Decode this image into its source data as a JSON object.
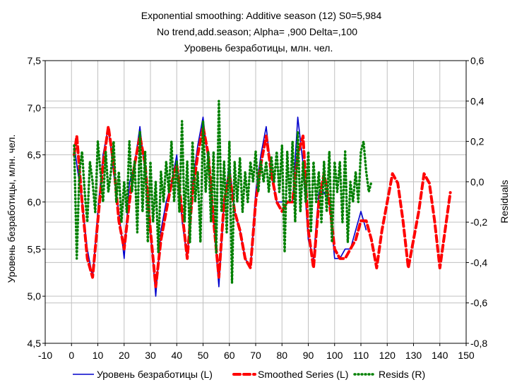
{
  "chart_data": {
    "type": "line",
    "title_lines": [
      "Exponential smoothing: Additive season (12) S0=5,984",
      "No trend,add.season;  Alpha=   ,900 Delta=,100",
      "Уровень безработицы, млн. чел."
    ],
    "xlabel": "",
    "ylabel_left": "Уровень безработицы, млн. чел.",
    "ylabel_right": "Residuals",
    "xlim": [
      -10,
      150
    ],
    "ylim_left": [
      4.5,
      7.5
    ],
    "ylim_right": [
      -0.8,
      0.6
    ],
    "x_ticks": [
      "-10",
      "0",
      "10",
      "20",
      "30",
      "40",
      "50",
      "60",
      "70",
      "80",
      "90",
      "100",
      "110",
      "120",
      "130",
      "140",
      "150"
    ],
    "y_left_ticks": [
      "4,5",
      "5,0",
      "5,5",
      "6,0",
      "6,5",
      "7,0",
      "7,5"
    ],
    "y_right_ticks": [
      "-0,8",
      "-0,6",
      "-0,4",
      "-0,2",
      "0,0",
      "0,2",
      "0,4",
      "0,6"
    ],
    "grid": true,
    "legend_position": "bottom",
    "series": [
      {
        "name": "Уровень безработицы (L)",
        "axis": "left",
        "color": "#0000cc",
        "style": "solid",
        "points": [
          [
            1,
            6.6
          ],
          [
            2,
            6.4
          ],
          [
            4,
            6.0
          ],
          [
            6,
            5.5
          ],
          [
            8,
            5.2
          ],
          [
            10,
            5.9
          ],
          [
            12,
            6.5
          ],
          [
            14,
            6.8
          ],
          [
            16,
            6.3
          ],
          [
            18,
            5.9
          ],
          [
            20,
            5.4
          ],
          [
            22,
            6.2
          ],
          [
            24,
            6.4
          ],
          [
            26,
            6.8
          ],
          [
            28,
            6.3
          ],
          [
            30,
            5.7
          ],
          [
            32,
            5.0
          ],
          [
            34,
            5.7
          ],
          [
            36,
            6.0
          ],
          [
            38,
            6.2
          ],
          [
            40,
            6.5
          ],
          [
            42,
            5.8
          ],
          [
            44,
            5.4
          ],
          [
            46,
            6.2
          ],
          [
            48,
            6.6
          ],
          [
            50,
            6.9
          ],
          [
            52,
            6.4
          ],
          [
            54,
            5.8
          ],
          [
            56,
            5.1
          ],
          [
            58,
            6.0
          ],
          [
            60,
            6.4
          ],
          [
            62,
            5.9
          ],
          [
            64,
            5.7
          ],
          [
            66,
            5.4
          ],
          [
            68,
            5.3
          ],
          [
            70,
            6.1
          ],
          [
            72,
            6.5
          ],
          [
            74,
            6.8
          ],
          [
            76,
            6.3
          ],
          [
            78,
            6.0
          ],
          [
            80,
            6.0
          ],
          [
            82,
            6.0
          ],
          [
            84,
            6.0
          ],
          [
            86,
            6.9
          ],
          [
            88,
            6.4
          ],
          [
            90,
            5.6
          ],
          [
            92,
            5.4
          ],
          [
            94,
            6.1
          ],
          [
            96,
            6.1
          ],
          [
            98,
            6.0
          ],
          [
            100,
            5.4
          ],
          [
            102,
            5.4
          ],
          [
            104,
            5.5
          ],
          [
            106,
            5.5
          ],
          [
            108,
            5.7
          ],
          [
            110,
            5.9
          ],
          [
            112,
            5.7
          ]
        ]
      },
      {
        "name": "Smoothed Series (L)",
        "axis": "left",
        "color": "#ff0000",
        "style": "dashed",
        "points": [
          [
            1,
            6.5
          ],
          [
            2,
            6.7
          ],
          [
            4,
            6.0
          ],
          [
            6,
            5.4
          ],
          [
            8,
            5.2
          ],
          [
            10,
            5.8
          ],
          [
            12,
            6.4
          ],
          [
            14,
            6.8
          ],
          [
            16,
            6.4
          ],
          [
            18,
            5.8
          ],
          [
            20,
            5.5
          ],
          [
            22,
            6.0
          ],
          [
            24,
            6.4
          ],
          [
            26,
            6.7
          ],
          [
            28,
            6.4
          ],
          [
            30,
            5.7
          ],
          [
            32,
            5.1
          ],
          [
            34,
            5.6
          ],
          [
            36,
            5.9
          ],
          [
            38,
            6.2
          ],
          [
            40,
            6.4
          ],
          [
            42,
            5.9
          ],
          [
            44,
            5.4
          ],
          [
            46,
            6.1
          ],
          [
            48,
            6.5
          ],
          [
            50,
            6.8
          ],
          [
            52,
            6.5
          ],
          [
            54,
            5.8
          ],
          [
            56,
            5.2
          ],
          [
            58,
            6.0
          ],
          [
            60,
            6.3
          ],
          [
            62,
            5.9
          ],
          [
            64,
            5.7
          ],
          [
            66,
            5.4
          ],
          [
            68,
            5.3
          ],
          [
            70,
            6.0
          ],
          [
            72,
            6.4
          ],
          [
            74,
            6.7
          ],
          [
            76,
            6.3
          ],
          [
            78,
            6.0
          ],
          [
            80,
            5.9
          ],
          [
            82,
            6.0
          ],
          [
            84,
            6.0
          ],
          [
            86,
            6.5
          ],
          [
            88,
            6.7
          ],
          [
            90,
            5.7
          ],
          [
            92,
            5.3
          ],
          [
            94,
            6.0
          ],
          [
            96,
            6.3
          ],
          [
            98,
            6.0
          ],
          [
            100,
            5.5
          ],
          [
            102,
            5.4
          ],
          [
            104,
            5.4
          ],
          [
            106,
            5.5
          ],
          [
            108,
            5.6
          ],
          [
            110,
            5.8
          ],
          [
            112,
            5.8
          ],
          [
            114,
            5.6
          ],
          [
            116,
            5.3
          ],
          [
            118,
            5.7
          ],
          [
            120,
            6.0
          ],
          [
            122,
            6.3
          ],
          [
            124,
            6.2
          ],
          [
            126,
            5.8
          ],
          [
            128,
            5.3
          ],
          [
            130,
            5.6
          ],
          [
            132,
            5.9
          ],
          [
            134,
            6.3
          ],
          [
            136,
            6.2
          ],
          [
            138,
            5.8
          ],
          [
            140,
            5.3
          ],
          [
            142,
            5.7
          ],
          [
            144,
            6.1
          ]
        ]
      },
      {
        "name": "Resids (R)",
        "axis": "right",
        "color": "#008000",
        "style": "dotted",
        "points": [
          [
            1,
            0.18
          ],
          [
            2,
            -0.38
          ],
          [
            3,
            0.05
          ],
          [
            4,
            0.15
          ],
          [
            5,
            -0.05
          ],
          [
            6,
            -0.2
          ],
          [
            7,
            0.1
          ],
          [
            8,
            0.0
          ],
          [
            9,
            -0.15
          ],
          [
            10,
            0.2
          ],
          [
            11,
            0.05
          ],
          [
            12,
            -0.1
          ],
          [
            13,
            0.15
          ],
          [
            14,
            -0.05
          ],
          [
            15,
            0.05
          ],
          [
            16,
            0.2
          ],
          [
            17,
            -0.1
          ],
          [
            18,
            0.05
          ],
          [
            19,
            -0.2
          ],
          [
            20,
            0.0
          ],
          [
            21,
            -0.15
          ],
          [
            22,
            0.2
          ],
          [
            23,
            -0.05
          ],
          [
            24,
            0.1
          ],
          [
            25,
            -0.25
          ],
          [
            26,
            0.25
          ],
          [
            27,
            -0.15
          ],
          [
            28,
            0.15
          ],
          [
            29,
            -0.3
          ],
          [
            30,
            0.1
          ],
          [
            31,
            -0.2
          ],
          [
            32,
            0.0
          ],
          [
            33,
            -0.35
          ],
          [
            34,
            0.05
          ],
          [
            35,
            -0.1
          ],
          [
            36,
            0.1
          ],
          [
            37,
            -0.05
          ],
          [
            38,
            0.2
          ],
          [
            39,
            -0.1
          ],
          [
            40,
            0.1
          ],
          [
            41,
            -0.15
          ],
          [
            42,
            0.3
          ],
          [
            43,
            -0.2
          ],
          [
            44,
            0.1
          ],
          [
            45,
            -0.3
          ],
          [
            46,
            0.2
          ],
          [
            47,
            -0.1
          ],
          [
            48,
            0.05
          ],
          [
            49,
            -0.3
          ],
          [
            50,
            0.3
          ],
          [
            51,
            -0.05
          ],
          [
            52,
            0.15
          ],
          [
            53,
            -0.2
          ],
          [
            54,
            0.15
          ],
          [
            55,
            -0.35
          ],
          [
            56,
            0.4
          ],
          [
            57,
            -0.15
          ],
          [
            58,
            0.1
          ],
          [
            59,
            -0.25
          ],
          [
            60,
            0.2
          ],
          [
            61,
            -0.5
          ],
          [
            62,
            0.1
          ],
          [
            63,
            -0.1
          ],
          [
            64,
            0.12
          ],
          [
            65,
            -0.15
          ],
          [
            66,
            0.05
          ],
          [
            67,
            -0.1
          ],
          [
            68,
            0.1
          ],
          [
            69,
            0.0
          ],
          [
            70,
            0.15
          ],
          [
            71,
            -0.05
          ],
          [
            72,
            0.1
          ],
          [
            73,
            0.0
          ],
          [
            74,
            0.1
          ],
          [
            75,
            -0.05
          ],
          [
            76,
            0.12
          ],
          [
            77,
            0.0
          ],
          [
            78,
            0.15
          ],
          [
            79,
            -0.05
          ],
          [
            80,
            0.18
          ],
          [
            81,
            -0.35
          ],
          [
            82,
            0.15
          ],
          [
            83,
            -0.1
          ],
          [
            84,
            0.2
          ],
          [
            85,
            -0.2
          ],
          [
            86,
            0.25
          ],
          [
            87,
            -0.15
          ],
          [
            88,
            0.1
          ],
          [
            89,
            -0.1
          ],
          [
            90,
            0.15
          ],
          [
            91,
            -0.25
          ],
          [
            92,
            0.1
          ],
          [
            93,
            -0.1
          ],
          [
            94,
            0.05
          ],
          [
            95,
            -0.2
          ],
          [
            96,
            0.1
          ],
          [
            97,
            -0.15
          ],
          [
            98,
            0.15
          ],
          [
            99,
            -0.3
          ],
          [
            100,
            0.1
          ],
          [
            101,
            -0.05
          ],
          [
            102,
            0.1
          ],
          [
            103,
            -0.2
          ],
          [
            104,
            0.15
          ],
          [
            105,
            -0.3
          ],
          [
            106,
            0.0
          ],
          [
            107,
            -0.1
          ],
          [
            108,
            0.05
          ],
          [
            109,
            -0.1
          ],
          [
            110,
            0.15
          ],
          [
            111,
            0.2
          ],
          [
            112,
            0.05
          ],
          [
            113,
            -0.05
          ],
          [
            114,
            0.0
          ]
        ]
      }
    ]
  }
}
